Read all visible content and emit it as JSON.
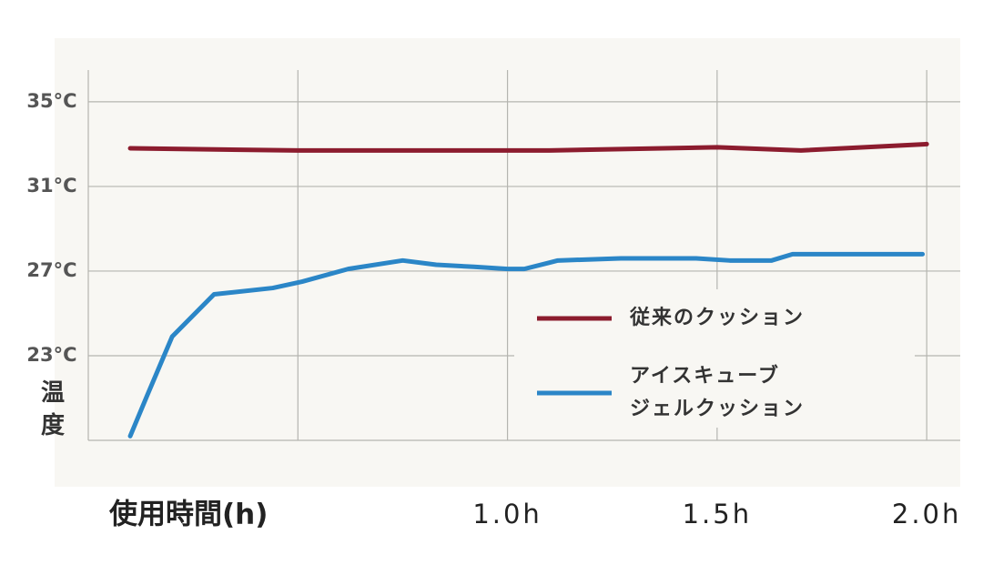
{
  "chart_data": {
    "type": "line",
    "ylabel": "温度",
    "xlabel": "使用時間(h)",
    "xlim": [
      0,
      2.08
    ],
    "ylim": [
      19,
      36.5
    ],
    "x_gridlines": [
      0.5,
      1,
      1.5,
      2
    ],
    "xticks": [
      {
        "value": 1,
        "label": "1.0h"
      },
      {
        "value": 1.5,
        "label": "1.5h"
      },
      {
        "value": 2,
        "label": "2.0h"
      }
    ],
    "yticks": [
      {
        "value": 35,
        "label": "35°C"
      },
      {
        "value": 31,
        "label": "31°C"
      },
      {
        "value": 27,
        "label": "27°C"
      },
      {
        "value": 23,
        "label": "23°C"
      }
    ],
    "grid": true,
    "legend": "center-right",
    "series": [
      {
        "name": "従来のクッション",
        "color": "#8c1c2e",
        "x": [
          0.1,
          0.5,
          1.0,
          1.1,
          1.5,
          1.7,
          2.0
        ],
        "values": [
          32.8,
          32.7,
          32.7,
          32.7,
          32.85,
          32.7,
          33.0
        ]
      },
      {
        "name": "アイスキューブ\nジェルクッション",
        "color": "#2b86c7",
        "x": [
          0.1,
          0.14,
          0.17,
          0.2,
          0.3,
          0.44,
          0.51,
          0.62,
          0.75,
          0.83,
          0.92,
          1.0,
          1.04,
          1.1,
          1.12,
          1.27,
          1.45,
          1.53,
          1.63,
          1.68,
          1.99
        ],
        "values": [
          19.2,
          21.1,
          22.5,
          23.9,
          25.9,
          26.2,
          26.5,
          27.1,
          27.5,
          27.3,
          27.2,
          27.1,
          27.1,
          27.4,
          27.5,
          27.6,
          27.6,
          27.5,
          27.5,
          27.8,
          27.8
        ]
      }
    ]
  }
}
